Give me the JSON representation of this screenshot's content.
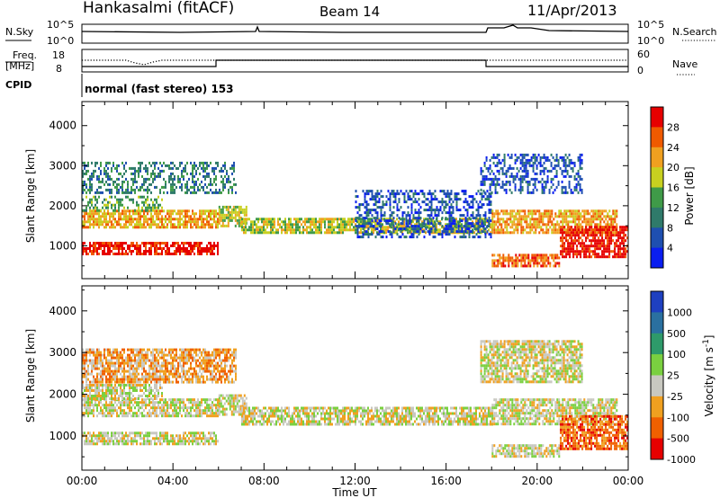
{
  "header": {
    "station": "Hankasalmi (fitACF)",
    "beam": "Beam 14",
    "date": "11/Apr/2013"
  },
  "status_panels": {
    "nsky": {
      "label": "N.Sky",
      "ticks": [
        "10^5",
        "10^0"
      ]
    },
    "nsearch": {
      "label": "N.Search",
      "ticks": [
        "10^5",
        "10^0"
      ]
    },
    "freq": {
      "label_1": "Freq.",
      "label_2": "[MHz]",
      "ticks": [
        "18",
        "8"
      ]
    },
    "nave": {
      "label": "Nave",
      "ticks": [
        "60",
        "0"
      ]
    },
    "cpid": {
      "label": "CPID",
      "value": "normal (fast stereo) 153"
    }
  },
  "chart_data": [
    {
      "type": "heatmap",
      "name": "power",
      "ylabel": "Slant Range [km]",
      "xlabel": "Time UT",
      "x_ticks": [
        "00:00",
        "04:00",
        "08:00",
        "12:00",
        "16:00",
        "20:00",
        "00:00"
      ],
      "x_range_hours": [
        0,
        24
      ],
      "y_ticks": [
        1000,
        2000,
        3000,
        4000
      ],
      "y_range_km": [
        180,
        4600
      ],
      "colorbar": {
        "label": "Power [dB]",
        "ticks": [
          4,
          8,
          12,
          16,
          20,
          24,
          28
        ],
        "colors": [
          "#0a1ef0",
          "#1e4fb0",
          "#2f7a6a",
          "#3f9a48",
          "#c8d020",
          "#f0a020",
          "#f05a00",
          "#e60000"
        ]
      },
      "bands": [
        {
          "t0": 0.0,
          "t1": 6.0,
          "r0": 800,
          "r1": 1100,
          "level": 7
        },
        {
          "t0": 0.0,
          "t1": 6.0,
          "r0": 1450,
          "r1": 1900,
          "level": 5
        },
        {
          "t0": 0.0,
          "t1": 3.5,
          "r0": 1900,
          "r1": 2250,
          "level": 3
        },
        {
          "t0": 0.0,
          "t1": 6.8,
          "r0": 2300,
          "r1": 3100,
          "level": 2
        },
        {
          "t0": 6.0,
          "t1": 7.2,
          "r0": 1500,
          "r1": 2000,
          "level": 4
        },
        {
          "t0": 7.0,
          "t1": 18.0,
          "r0": 1300,
          "r1": 1700,
          "level": 4
        },
        {
          "t0": 12.0,
          "t1": 18.0,
          "r0": 1200,
          "r1": 2400,
          "level": 1
        },
        {
          "t0": 18.0,
          "t1": 23.5,
          "r0": 1300,
          "r1": 1900,
          "level": 5
        },
        {
          "t0": 18.0,
          "t1": 21.0,
          "r0": 500,
          "r1": 800,
          "level": 6
        },
        {
          "t0": 21.0,
          "t1": 24.0,
          "r0": 700,
          "r1": 1500,
          "level": 7
        },
        {
          "t0": 17.5,
          "t1": 22.0,
          "r0": 2300,
          "r1": 3300,
          "level": 1
        }
      ]
    },
    {
      "type": "heatmap",
      "name": "velocity",
      "ylabel": "Slant Range [km]",
      "xlabel": "Time UT",
      "x_ticks": [
        "00:00",
        "04:00",
        "08:00",
        "12:00",
        "16:00",
        "20:00",
        "00:00"
      ],
      "x_range_hours": [
        0,
        24
      ],
      "y_ticks": [
        1000,
        2000,
        3000,
        4000
      ],
      "y_range_km": [
        180,
        4600
      ],
      "colorbar": {
        "label": "Velocity [m s^-1]",
        "ticks": [
          1000,
          500,
          100,
          25,
          -25,
          -100,
          -500,
          -1000
        ],
        "colors": [
          "#1e40c0",
          "#2a70a0",
          "#2e9a6a",
          "#7ad040",
          "#c8c8c0",
          "#f0a020",
          "#f06000",
          "#e60000"
        ]
      },
      "bands": [
        {
          "t0": 0.0,
          "t1": 6.0,
          "r0": 800,
          "r1": 1100,
          "level": 4
        },
        {
          "t0": 0.0,
          "t1": 6.0,
          "r0": 1450,
          "r1": 1900,
          "level": 4
        },
        {
          "t0": 0.0,
          "t1": 3.5,
          "r0": 1900,
          "r1": 2250,
          "level": 4
        },
        {
          "t0": 0.0,
          "t1": 6.8,
          "r0": 2300,
          "r1": 3100,
          "level": 5
        },
        {
          "t0": 6.0,
          "t1": 7.2,
          "r0": 1500,
          "r1": 2000,
          "level": 4
        },
        {
          "t0": 7.0,
          "t1": 18.0,
          "r0": 1300,
          "r1": 1700,
          "level": 4
        },
        {
          "t0": 18.0,
          "t1": 23.5,
          "r0": 1300,
          "r1": 1900,
          "level": 4
        },
        {
          "t0": 18.0,
          "t1": 21.0,
          "r0": 500,
          "r1": 800,
          "level": 4
        },
        {
          "t0": 21.0,
          "t1": 24.0,
          "r0": 700,
          "r1": 1500,
          "level": 6
        },
        {
          "t0": 17.5,
          "t1": 22.0,
          "r0": 2300,
          "r1": 3300,
          "level": 4
        }
      ]
    }
  ]
}
